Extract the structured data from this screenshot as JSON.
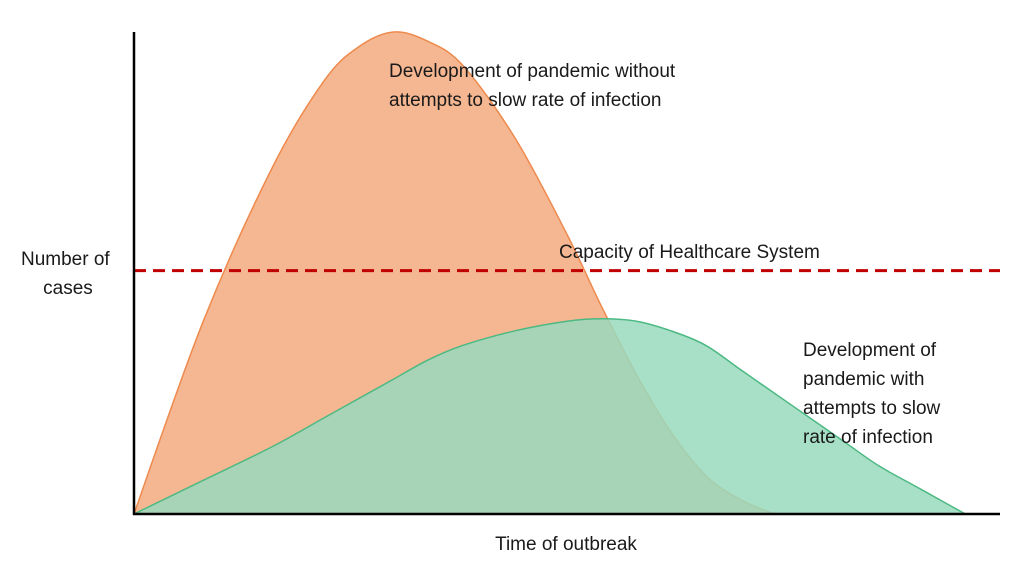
{
  "chart_data": {
    "type": "area",
    "title": "",
    "xlabel": "Time of outbreak",
    "ylabel": [
      "Number of",
      "cases"
    ],
    "xlim": [
      0,
      100
    ],
    "ylim": [
      0,
      100
    ],
    "grid": false,
    "legend": "none",
    "series": [
      {
        "label_lines": [
          "Development of pandemic without",
          "attempts to slow rate of infection"
        ],
        "color": "#F5B791",
        "stroke": "#EE8A4D",
        "x": [
          0,
          8,
          16,
          22,
          26,
          30,
          34,
          38,
          44,
          50,
          54,
          58,
          62,
          66,
          70,
          74,
          78,
          82,
          86,
          90,
          94,
          96,
          98,
          100
        ],
        "y": [
          0,
          40,
          72,
          90,
          97,
          100,
          98,
          93,
          78,
          58,
          43,
          29,
          17,
          8,
          3,
          0,
          null,
          null,
          null,
          null,
          null,
          null,
          null,
          null
        ]
      },
      {
        "label_lines": [
          "Development of",
          "pandemic with",
          "attempts to slow",
          "rate of infection"
        ],
        "color": "#99D9BD",
        "stroke": "#4CB983",
        "x": [
          0,
          8,
          16,
          22,
          26,
          30,
          34,
          38,
          44,
          50,
          54,
          58,
          62,
          66,
          70,
          74,
          78,
          82,
          86,
          90,
          94,
          96,
          98,
          100
        ],
        "y": [
          0,
          7,
          14,
          20,
          24,
          28,
          32,
          35,
          38,
          40,
          40.5,
          40,
          38,
          35,
          30,
          25,
          20,
          15,
          10,
          6,
          2,
          0,
          null,
          null
        ]
      }
    ],
    "reference_line": {
      "label": "Capacity of Healthcare System",
      "y": 50.5,
      "color": "#C00000"
    }
  }
}
